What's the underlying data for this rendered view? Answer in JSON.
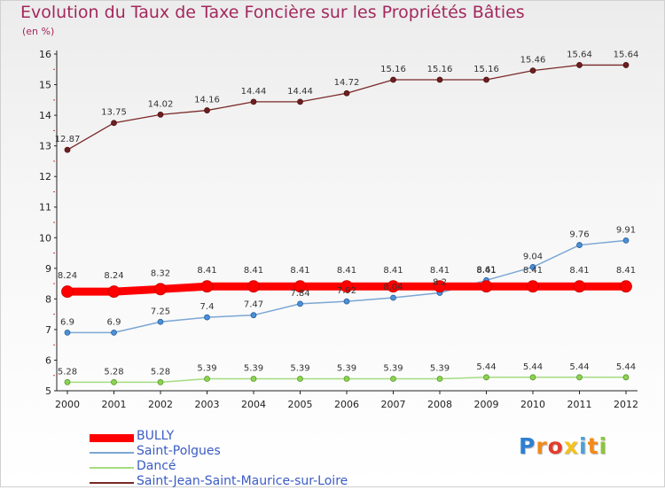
{
  "title": "Evolution du Taux de Taxe Foncière sur les Propriétés Bâties",
  "subtitle": "(en %)",
  "chart_data": {
    "type": "line",
    "x": [
      2000,
      2001,
      2002,
      2003,
      2004,
      2005,
      2006,
      2007,
      2008,
      2009,
      2010,
      2011,
      2012
    ],
    "ylim": [
      5,
      16
    ],
    "yticks": [
      5,
      6,
      7,
      8,
      9,
      10,
      11,
      12,
      13,
      14,
      15,
      16
    ],
    "grid": false,
    "legend_position": "bottom-left",
    "series": [
      {
        "name": "BULLY",
        "color": "#ff0000",
        "values": [
          8.24,
          8.24,
          8.32,
          8.41,
          8.41,
          8.41,
          8.41,
          8.41,
          8.41,
          8.41,
          8.41,
          8.41,
          8.41
        ],
        "labels": [
          "8.24",
          "8.24",
          "8.32",
          "8.41",
          "8.41",
          "8.41",
          "8.41",
          "8.41",
          "8.41",
          "8.41",
          "8.41",
          "8.41",
          "8.41"
        ]
      },
      {
        "name": "Saint-Polgues",
        "color": "#5b9bd5",
        "values": [
          6.9,
          6.9,
          7.25,
          7.4,
          7.47,
          7.84,
          7.92,
          8.04,
          8.2,
          8.61,
          9.04,
          9.76,
          9.91
        ],
        "labels": [
          "6.9",
          "6.9",
          "7.25",
          "7.4",
          "7.47",
          "7.84",
          "7.92",
          "8.04",
          "8.2",
          "8.61",
          "9.04",
          "9.76",
          "9.91"
        ]
      },
      {
        "name": "Dancé",
        "color": "#8cd352",
        "values": [
          5.28,
          5.28,
          5.28,
          5.39,
          5.39,
          5.39,
          5.39,
          5.39,
          5.39,
          5.44,
          5.44,
          5.44,
          5.44
        ],
        "labels": [
          "5.28",
          "5.28",
          "5.28",
          "5.39",
          "5.39",
          "5.39",
          "5.39",
          "5.39",
          "5.39",
          "5.44",
          "5.44",
          "5.44",
          "5.44"
        ]
      },
      {
        "name": "Saint-Jean-Saint-Maurice-sur-Loire",
        "color": "#7a2828",
        "values": [
          12.87,
          13.75,
          14.02,
          14.16,
          14.44,
          14.44,
          14.72,
          15.16,
          15.16,
          15.16,
          15.46,
          15.64,
          15.64
        ],
        "labels": [
          "12.87",
          "13.75",
          "14.02",
          "14.16",
          "14.44",
          "14.44",
          "14.72",
          "15.16",
          "15.16",
          "15.16",
          "15.46",
          "15.64",
          "15.64"
        ]
      }
    ]
  },
  "logo": {
    "text": "Proxiti",
    "letters": [
      {
        "ch": "P",
        "color": "#2f7fd0"
      },
      {
        "ch": "r",
        "color": "#f18a1c"
      },
      {
        "ch": "o",
        "color": "#e23c2c"
      },
      {
        "ch": "x",
        "color": "#f5c21b"
      },
      {
        "ch": "i",
        "color": "#4aa2d8"
      },
      {
        "ch": "t",
        "color": "#f18a1c"
      },
      {
        "ch": "i",
        "color": "#8cc63f"
      }
    ]
  }
}
